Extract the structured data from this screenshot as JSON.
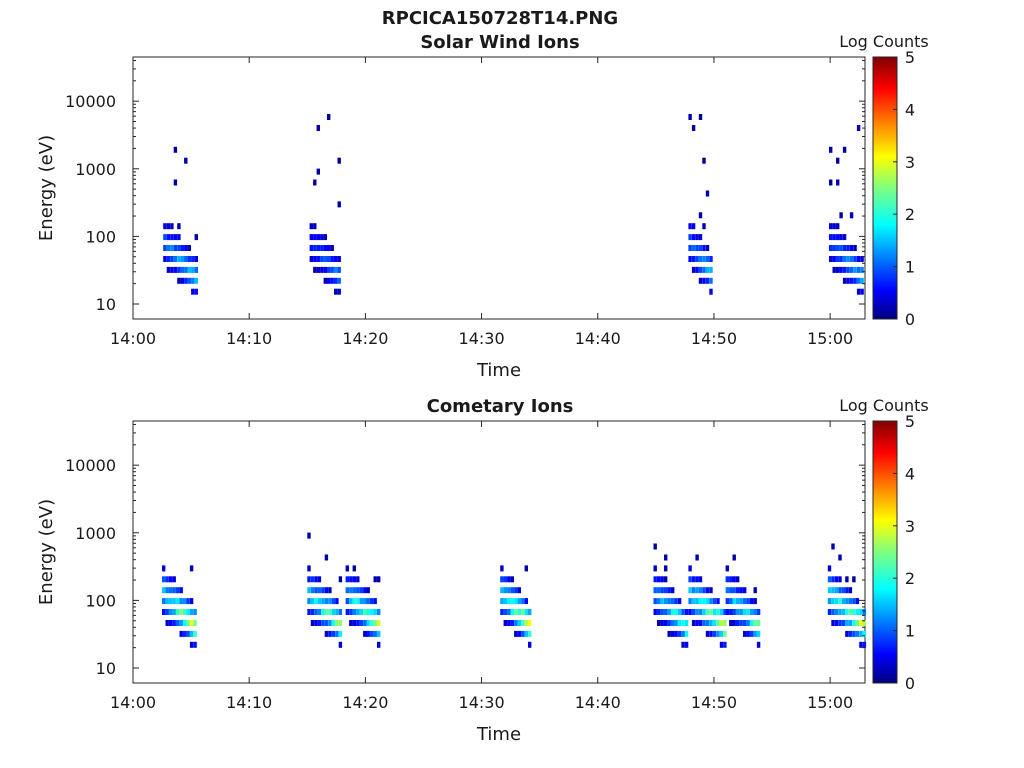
{
  "chart_data": {
    "type": "heatmap",
    "title": "RPCICA150728T14.PNG",
    "panels": [
      {
        "subtitle": "Solar Wind Ions",
        "xlabel": "Time",
        "ylabel": "Energy (eV)",
        "xlim": [
          "14:00",
          "15:03"
        ],
        "ylim": [
          6,
          45000
        ],
        "y_scale": "log",
        "x_ticks": [
          "14:00",
          "14:10",
          "14:20",
          "14:30",
          "14:40",
          "14:50",
          "15:00"
        ],
        "y_ticks": [
          "10",
          "100",
          "1000",
          "10000"
        ],
        "colorbar": {
          "label": "Log Counts",
          "min": 0,
          "max": 5,
          "ticks": [
            "0",
            "1",
            "2",
            "3",
            "4",
            "5"
          ],
          "colormap": "jet"
        },
        "clusters": [
          {
            "start_min": 2.6,
            "end_min": 5.3,
            "peak_log_counts": 1.8
          },
          {
            "start_min": 15.2,
            "end_min": 17.7,
            "peak_log_counts": 1.3
          },
          {
            "start_min": 47.8,
            "end_min": 49.8,
            "peak_log_counts": 1.8
          },
          {
            "start_min": 59.9,
            "end_min": 62.6,
            "peak_log_counts": 1.6
          }
        ]
      },
      {
        "subtitle": "Cometary Ions",
        "xlabel": "Time",
        "ylabel": "Energy (eV)",
        "xlim": [
          "14:00",
          "15:03"
        ],
        "ylim": [
          6,
          45000
        ],
        "y_scale": "log",
        "x_ticks": [
          "14:00",
          "14:10",
          "14:20",
          "14:30",
          "14:40",
          "14:50",
          "15:00"
        ],
        "y_ticks": [
          "10",
          "100",
          "1000",
          "10000"
        ],
        "colorbar": {
          "label": "Log Counts",
          "min": 0,
          "max": 5,
          "ticks": [
            "0",
            "1",
            "2",
            "3",
            "4",
            "5"
          ],
          "colormap": "jet"
        },
        "clusters": [
          {
            "start_min": 2.5,
            "end_min": 5.3,
            "peak_log_counts": 2.8
          },
          {
            "start_min": 15.0,
            "end_min": 18.0,
            "peak_log_counts": 2.7
          },
          {
            "start_min": 18.3,
            "end_min": 21.3,
            "peak_log_counts": 2.7
          },
          {
            "start_min": 31.6,
            "end_min": 34.2,
            "peak_log_counts": 2.9
          },
          {
            "start_min": 44.8,
            "end_min": 47.5,
            "peak_log_counts": 2.2
          },
          {
            "start_min": 47.8,
            "end_min": 50.8,
            "peak_log_counts": 2.8
          },
          {
            "start_min": 51.0,
            "end_min": 53.8,
            "peak_log_counts": 2.3
          },
          {
            "start_min": 59.8,
            "end_min": 62.8,
            "peak_log_counts": 2.9
          }
        ]
      }
    ]
  }
}
